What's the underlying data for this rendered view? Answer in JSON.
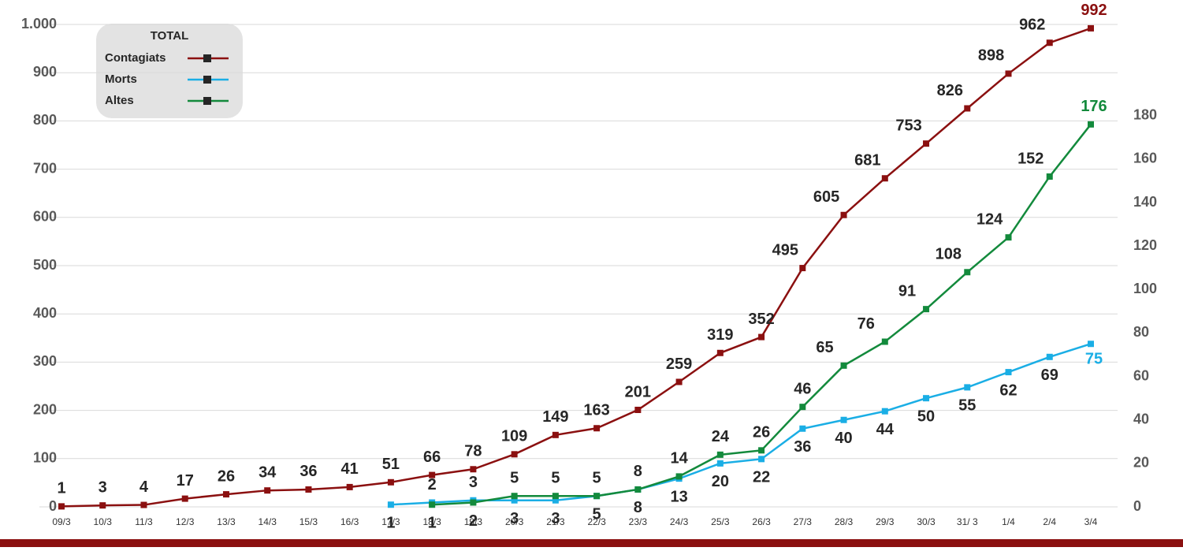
{
  "chart_data": {
    "type": "line",
    "categories": [
      "09/3",
      "10/3",
      "11/3",
      "12/3",
      "13/3",
      "14/3",
      "15/3",
      "16/3",
      "17/3",
      "18/3",
      "19/3",
      "20/3",
      "21/3",
      "22/3",
      "23/3",
      "24/3",
      "25/3",
      "26/3",
      "27/3",
      "28/3",
      "29/3",
      "30/3",
      "31/ 3",
      "1/4",
      "2/4",
      "3/4"
    ],
    "series": [
      {
        "name": "Contagiats",
        "color": "#8b1010",
        "values": [
          1,
          3,
          4,
          17,
          26,
          34,
          36,
          41,
          51,
          66,
          78,
          109,
          149,
          163,
          201,
          259,
          319,
          352,
          495,
          605,
          681,
          753,
          826,
          898,
          962,
          992
        ]
      },
      {
        "name": "Morts",
        "color": "#1aaee5",
        "axis": "y2",
        "values": [
          null,
          null,
          null,
          null,
          null,
          null,
          null,
          null,
          1,
          2,
          3,
          3,
          3,
          5,
          8,
          13,
          20,
          22,
          36,
          40,
          44,
          50,
          55,
          62,
          69,
          75
        ]
      },
      {
        "name": "Altes",
        "color": "#138a3c",
        "axis": "y2",
        "values": [
          null,
          null,
          null,
          null,
          null,
          null,
          null,
          null,
          null,
          1,
          2,
          5,
          5,
          5,
          8,
          14,
          24,
          26,
          46,
          65,
          76,
          91,
          108,
          124,
          152,
          176
        ]
      }
    ],
    "ylim": [
      0,
      1000
    ],
    "yticks": [
      0,
      100,
      200,
      300,
      400,
      500,
      600,
      700,
      800,
      900,
      {
        "value": 1000,
        "label": "1.000"
      }
    ],
    "y2lim": [
      0,
      222
    ],
    "y2ticks": [
      0,
      20,
      40,
      60,
      80,
      100,
      120,
      140,
      160,
      180
    ],
    "legend": {
      "title": "TOTAL",
      "position": "upper left"
    }
  }
}
